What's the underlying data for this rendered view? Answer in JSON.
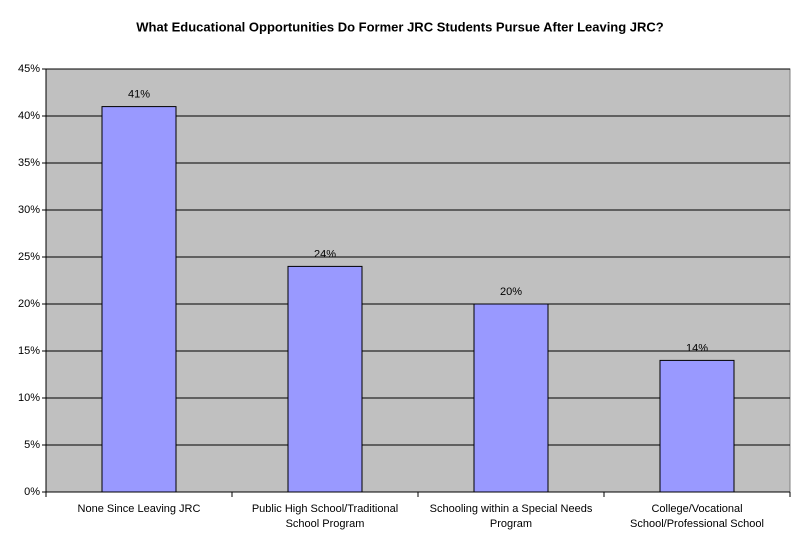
{
  "chart_data": {
    "type": "bar",
    "title": "What Educational Opportunities Do Former JRC Students Pursue After Leaving JRC?",
    "categories": [
      "None Since Leaving JRC",
      "Public High School/Traditional School Program",
      "Schooling within a Special Needs Program",
      "College/Vocational School/Professional School"
    ],
    "values": [
      41,
      24,
      20,
      14
    ],
    "value_labels": [
      "41%",
      "24%",
      "20%",
      "14%"
    ],
    "color": "#9999ff",
    "ylim": [
      0,
      45
    ],
    "yticks": [
      {
        "value": 0,
        "label": "0%"
      },
      {
        "value": 5,
        "label": "5%"
      },
      {
        "value": 10,
        "label": "10%"
      },
      {
        "value": 15,
        "label": "15%"
      },
      {
        "value": 20,
        "label": "20%"
      },
      {
        "value": 25,
        "label": "25%"
      },
      {
        "value": 30,
        "label": "30%"
      },
      {
        "value": 35,
        "label": "35%"
      },
      {
        "value": 40,
        "label": "40%"
      },
      {
        "value": 45,
        "label": "45%"
      }
    ],
    "grid": true
  }
}
